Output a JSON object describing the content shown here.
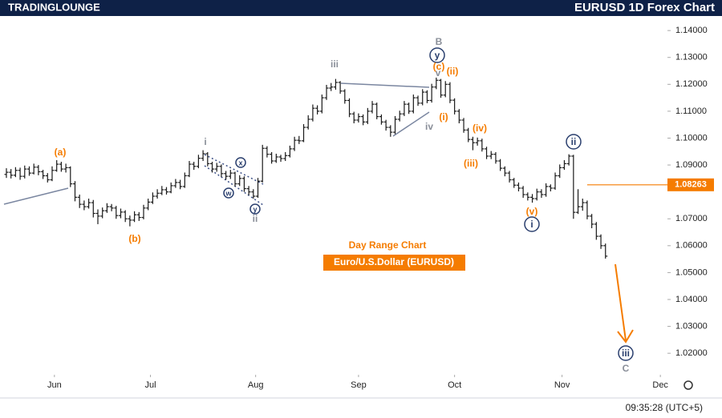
{
  "header": {
    "logo": "TRADINGLOUNGE",
    "title": "EURUSD 1D Forex Chart",
    "clock": "09:35:28 (UTC+5)"
  },
  "chart_data": {
    "type": "ohlc",
    "color": "#1a1a1a",
    "subtitle": "Day Range Chart",
    "symbol": "Euro/U.S.Dollar (EURUSD)",
    "ylim": [
      1.0129,
      1.1454
    ],
    "yticks": [
      {
        "value": 1.14,
        "label": "1.14000"
      },
      {
        "value": 1.13,
        "label": "1.13000"
      },
      {
        "value": 1.12,
        "label": "1.12000"
      },
      {
        "value": 1.11,
        "label": "1.11000"
      },
      {
        "value": 1.1,
        "label": "1.10000"
      },
      {
        "value": 1.09,
        "label": "1.09000"
      },
      {
        "value": 1.07,
        "label": "1.07000"
      },
      {
        "value": 1.06,
        "label": "1.06000"
      },
      {
        "value": 1.05,
        "label": "1.05000"
      },
      {
        "value": 1.04,
        "label": "1.04000"
      },
      {
        "value": 1.03,
        "label": "1.03000"
      },
      {
        "value": 1.02,
        "label": "1.02000"
      }
    ],
    "xlim": [
      -1.4,
      144.2
    ],
    "xticks": [
      {
        "value": 10.5,
        "label": "Jun"
      },
      {
        "value": 31.5,
        "label": "Jul"
      },
      {
        "value": 54.5,
        "label": "Aug"
      },
      {
        "value": 77,
        "label": "Sep"
      },
      {
        "value": 98,
        "label": "Oct"
      },
      {
        "value": 121.5,
        "label": "Nov"
      },
      {
        "value": 143,
        "label": "Dec"
      }
    ],
    "price_line": {
      "value": 1.08263,
      "label": "1.08263",
      "color": "#f57c00"
    },
    "ohlc": [
      [
        1.0865,
        1.0888,
        1.0852,
        1.0873
      ],
      [
        1.0873,
        1.0885,
        1.085,
        1.0862
      ],
      [
        1.0862,
        1.0892,
        1.0855,
        1.088
      ],
      [
        1.088,
        1.089,
        1.0845,
        1.0858
      ],
      [
        1.0858,
        1.0898,
        1.085,
        1.0885
      ],
      [
        1.0885,
        1.0895,
        1.086,
        1.087
      ],
      [
        1.087,
        1.0905,
        1.0865,
        1.0892
      ],
      [
        1.0892,
        1.09,
        1.0862,
        1.0875
      ],
      [
        1.0875,
        1.0882,
        1.0848,
        1.086
      ],
      [
        1.086,
        1.087,
        1.0835,
        1.0845
      ],
      [
        1.0845,
        1.0895,
        1.084,
        1.088
      ],
      [
        1.088,
        1.0918,
        1.0875,
        1.0903
      ],
      [
        1.0903,
        1.0912,
        1.0875,
        1.0885
      ],
      [
        1.0885,
        1.0905,
        1.0872,
        1.089
      ],
      [
        1.089,
        1.0895,
        1.0818,
        1.083
      ],
      [
        1.083,
        1.084,
        1.0765,
        1.078
      ],
      [
        1.078,
        1.079,
        1.074,
        1.0754
      ],
      [
        1.0754,
        1.0768,
        1.0732,
        1.0745
      ],
      [
        1.0745,
        1.0775,
        1.0738,
        1.076
      ],
      [
        1.076,
        1.077,
        1.0705,
        1.072
      ],
      [
        1.072,
        1.0735,
        1.068,
        1.071
      ],
      [
        1.071,
        1.0742,
        1.0702,
        1.073
      ],
      [
        1.073,
        1.0758,
        1.0722,
        1.0745
      ],
      [
        1.0745,
        1.0755,
        1.0728,
        1.074
      ],
      [
        1.074,
        1.0748,
        1.07,
        1.0712
      ],
      [
        1.0712,
        1.0738,
        1.0702,
        1.0725
      ],
      [
        1.0725,
        1.0732,
        1.0688,
        1.07
      ],
      [
        1.07,
        1.0712,
        1.0672,
        1.0695
      ],
      [
        1.0695,
        1.0728,
        1.0688,
        1.0715
      ],
      [
        1.0715,
        1.0725,
        1.0692,
        1.0705
      ],
      [
        1.0705,
        1.0752,
        1.0698,
        1.074
      ],
      [
        1.074,
        1.0775,
        1.0732,
        1.0762
      ],
      [
        1.0762,
        1.0798,
        1.0755,
        1.0784
      ],
      [
        1.0784,
        1.081,
        1.0775,
        1.0795
      ],
      [
        1.0795,
        1.0822,
        1.0788,
        1.0808
      ],
      [
        1.0808,
        1.0818,
        1.079,
        1.08
      ],
      [
        1.08,
        1.0835,
        1.0795,
        1.0823
      ],
      [
        1.0823,
        1.0848,
        1.0815,
        1.0835
      ],
      [
        1.0835,
        1.0845,
        1.081,
        1.082
      ],
      [
        1.082,
        1.0872,
        1.0815,
        1.086
      ],
      [
        1.086,
        1.0915,
        1.0855,
        1.0903
      ],
      [
        1.0903,
        1.0912,
        1.0882,
        1.0895
      ],
      [
        1.0895,
        1.0938,
        1.0888,
        1.0925
      ],
      [
        1.0925,
        1.0955,
        1.0915,
        1.0942
      ],
      [
        1.0942,
        1.0948,
        1.0895,
        1.0905
      ],
      [
        1.0905,
        1.0912,
        1.0872,
        1.0885
      ],
      [
        1.0885,
        1.0908,
        1.0875,
        1.0895
      ],
      [
        1.0895,
        1.0902,
        1.0855,
        1.0868
      ],
      [
        1.0868,
        1.0878,
        1.0845,
        1.0858
      ],
      [
        1.0858,
        1.0882,
        1.0848,
        1.087
      ],
      [
        1.087,
        1.0875,
        1.082,
        1.083
      ],
      [
        1.083,
        1.0862,
        1.0822,
        1.085
      ],
      [
        1.085,
        1.0858,
        1.08,
        1.0812
      ],
      [
        1.0812,
        1.0822,
        1.0788,
        1.08
      ],
      [
        1.08,
        1.081,
        1.0775,
        1.0784
      ],
      [
        1.0784,
        1.0852,
        1.0778,
        1.084
      ],
      [
        1.084,
        1.0975,
        1.0835,
        1.0962
      ],
      [
        1.0962,
        1.097,
        1.0928,
        1.094
      ],
      [
        1.094,
        1.0948,
        1.0905,
        1.0915
      ],
      [
        1.0915,
        1.0942,
        1.0908,
        1.093
      ],
      [
        1.093,
        1.0938,
        1.0912,
        1.0924
      ],
      [
        1.0924,
        1.0948,
        1.0915,
        1.0935
      ],
      [
        1.0935,
        1.0972,
        1.0928,
        1.096
      ],
      [
        1.096,
        1.1005,
        1.0952,
        1.0992
      ],
      [
        1.0992,
        1.1008,
        1.0978,
        1.099
      ],
      [
        1.099,
        1.1052,
        1.0985,
        1.104
      ],
      [
        1.104,
        1.1085,
        1.1032,
        1.107
      ],
      [
        1.107,
        1.1125,
        1.1062,
        1.1111
      ],
      [
        1.1111,
        1.1122,
        1.1088,
        1.11
      ],
      [
        1.11,
        1.1162,
        1.1092,
        1.115
      ],
      [
        1.115,
        1.1198,
        1.1142,
        1.1186
      ],
      [
        1.1186,
        1.1205,
        1.1175,
        1.119
      ],
      [
        1.119,
        1.122,
        1.118,
        1.1207
      ],
      [
        1.1207,
        1.1212,
        1.1165,
        1.1175
      ],
      [
        1.1175,
        1.1182,
        1.1128,
        1.114
      ],
      [
        1.114,
        1.1148,
        1.1078,
        1.109
      ],
      [
        1.109,
        1.1098,
        1.1055,
        1.1067
      ],
      [
        1.1067,
        1.1092,
        1.1058,
        1.108
      ],
      [
        1.108,
        1.1088,
        1.1048,
        1.106
      ],
      [
        1.106,
        1.1112,
        1.1052,
        1.11
      ],
      [
        1.11,
        1.1138,
        1.1092,
        1.1126
      ],
      [
        1.1126,
        1.1132,
        1.107,
        1.108
      ],
      [
        1.108,
        1.1088,
        1.105,
        1.106
      ],
      [
        1.106,
        1.1068,
        1.1028,
        1.104
      ],
      [
        1.104,
        1.1048,
        1.1005,
        1.1022
      ],
      [
        1.1022,
        1.1082,
        1.1015,
        1.107
      ],
      [
        1.107,
        1.1102,
        1.1062,
        1.109
      ],
      [
        1.109,
        1.1138,
        1.1082,
        1.1126
      ],
      [
        1.1126,
        1.1132,
        1.109,
        1.11
      ],
      [
        1.11,
        1.1162,
        1.1092,
        1.115
      ],
      [
        1.115,
        1.1158,
        1.112,
        1.113
      ],
      [
        1.113,
        1.1182,
        1.1122,
        1.1171
      ],
      [
        1.1171,
        1.1178,
        1.113,
        1.114
      ],
      [
        1.114,
        1.1202,
        1.1132,
        1.119
      ],
      [
        1.119,
        1.1225,
        1.1182,
        1.1215
      ],
      [
        1.1215,
        1.122,
        1.115,
        1.116
      ],
      [
        1.116,
        1.1212,
        1.1152,
        1.12
      ],
      [
        1.12,
        1.1208,
        1.113,
        1.1141
      ],
      [
        1.1141,
        1.1148,
        1.1088,
        1.11
      ],
      [
        1.11,
        1.1108,
        1.1055,
        1.1067
      ],
      [
        1.1067,
        1.1075,
        1.102,
        1.103
      ],
      [
        1.103,
        1.1038,
        1.0985,
        1.0995
      ],
      [
        1.0995,
        1.1005,
        1.0955,
        1.0983
      ],
      [
        1.0983,
        1.1002,
        1.0972,
        1.099
      ],
      [
        1.099,
        1.0998,
        1.095,
        1.096
      ],
      [
        1.096,
        1.0968,
        1.0922,
        1.0933
      ],
      [
        1.0933,
        1.0952,
        1.0922,
        1.094
      ],
      [
        1.094,
        1.0948,
        1.0905,
        1.0915
      ],
      [
        1.0915,
        1.0922,
        1.0878,
        1.0888
      ],
      [
        1.0888,
        1.0895,
        1.0858,
        1.087
      ],
      [
        1.087,
        1.0878,
        1.0835,
        1.0845
      ],
      [
        1.0845,
        1.0852,
        1.0815,
        1.0825
      ],
      [
        1.0825,
        1.0835,
        1.0802,
        1.0814
      ],
      [
        1.0814,
        1.0822,
        1.0778,
        1.079
      ],
      [
        1.079,
        1.0798,
        1.0768,
        1.078
      ],
      [
        1.078,
        1.0792,
        1.076,
        1.0775
      ],
      [
        1.0775,
        1.0812,
        1.0768,
        1.08
      ],
      [
        1.08,
        1.081,
        1.0778,
        1.079
      ],
      [
        1.079,
        1.0832,
        1.0782,
        1.082
      ],
      [
        1.082,
        1.0828,
        1.0802,
        1.0814
      ],
      [
        1.0814,
        1.0872,
        1.0808,
        1.086
      ],
      [
        1.086,
        1.0902,
        1.0852,
        1.089
      ],
      [
        1.089,
        1.0918,
        1.0882,
        1.0905
      ],
      [
        1.0905,
        1.094,
        1.0898,
        1.0933
      ],
      [
        1.0933,
        1.0938,
        1.07,
        1.0724
      ],
      [
        1.0724,
        1.081,
        1.0718,
        1.0745
      ],
      [
        1.0745,
        1.0775,
        1.073,
        1.076
      ],
      [
        1.076,
        1.0768,
        1.0698,
        1.071
      ],
      [
        1.071,
        1.0718,
        1.0665,
        1.068
      ],
      [
        1.068,
        1.0688,
        1.0622,
        1.0635
      ],
      [
        1.0635,
        1.0642,
        1.0588,
        1.06
      ],
      [
        1.06,
        1.0608,
        1.0552,
        1.0561
      ]
    ],
    "annotations": [
      {
        "text": "(a)",
        "color": "#f57c00",
        "circled": false
      },
      {
        "text": "(b)",
        "color": "#f57c00",
        "circled": false
      },
      {
        "text": "i",
        "color": "#8a8f99",
        "circled": false
      },
      {
        "text": "ii",
        "color": "#8a8f99",
        "circled": false
      },
      {
        "text": "iii",
        "color": "#8a8f99",
        "circled": false
      },
      {
        "text": "iv",
        "color": "#8a8f99",
        "circled": false
      },
      {
        "text": "v",
        "color": "#8a8f99",
        "circled": false
      },
      {
        "text": "B",
        "color": "#8a8f99",
        "circled": false
      },
      {
        "text": "y",
        "color": "#2a3f6e",
        "circled": true
      },
      {
        "text": "(c)",
        "color": "#f57c00",
        "circled": false
      },
      {
        "text": "(ii)",
        "color": "#f57c00",
        "circled": false
      },
      {
        "text": "(i)",
        "color": "#f57c00",
        "circled": false
      },
      {
        "text": "(iv)",
        "color": "#f57c00",
        "circled": false
      },
      {
        "text": "(iii)",
        "color": "#f57c00",
        "circled": false
      },
      {
        "text": "(v)",
        "color": "#f57c00",
        "circled": false
      },
      {
        "text": "i",
        "color": "#2a3f6e",
        "circled": true
      },
      {
        "text": "ii",
        "color": "#2a3f6e",
        "circled": true
      },
      {
        "text": "iii",
        "color": "#2a3f6e",
        "circled": true
      },
      {
        "text": "C",
        "color": "#8a8f99",
        "circled": false
      },
      {
        "text": "x",
        "color": "#2a3f6e",
        "circled": true
      },
      {
        "text": "w",
        "color": "#2a3f6e",
        "circled": true
      },
      {
        "text": "y",
        "color": "#2a3f6e",
        "circled": true
      }
    ]
  }
}
